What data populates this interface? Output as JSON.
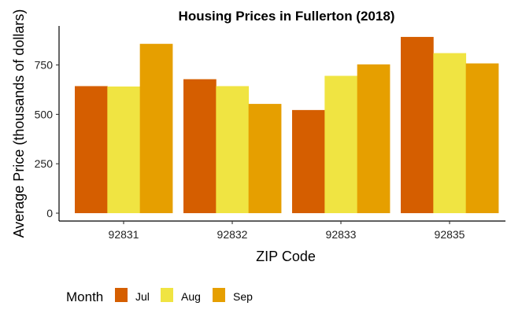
{
  "chart_data": {
    "type": "bar",
    "title": "Housing Prices in Fullerton (2018)",
    "xlabel": "ZIP Code",
    "ylabel": "Average Price (thousands of dollars)",
    "categories": [
      "92831",
      "92832",
      "92833",
      "92835"
    ],
    "series": [
      {
        "name": "Jul",
        "color": "#D55E00",
        "values": [
          643,
          678,
          522,
          892
        ]
      },
      {
        "name": "Aug",
        "color": "#F0E442",
        "values": [
          641,
          643,
          695,
          810
        ]
      },
      {
        "name": "Sep",
        "color": "#E69F00",
        "values": [
          857,
          553,
          753,
          758
        ]
      }
    ],
    "ylim": [
      0,
      950
    ],
    "yticks": [
      0,
      250,
      500,
      750
    ],
    "grid": false,
    "legend": {
      "title": "Month",
      "position": "bottom-left"
    }
  }
}
